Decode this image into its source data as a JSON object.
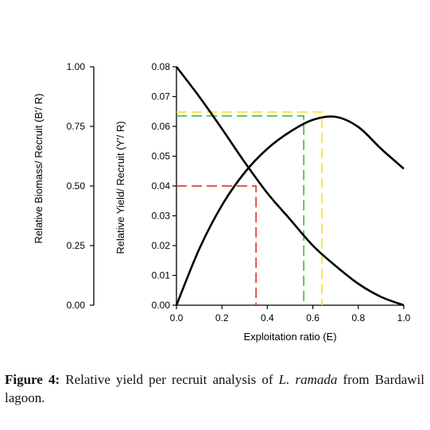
{
  "chart_data": {
    "type": "line",
    "xlabel": "Exploitation ratio (E)",
    "ylabel_left": "Relative Biomass/ Recruit (B'/ R)",
    "ylabel_right": "Relative Yield/ Recruit (Y'/ R)",
    "xlim": [
      0,
      1
    ],
    "ylim_left": [
      0,
      1
    ],
    "ylim_right": [
      0,
      0.08
    ],
    "x_ticks": [
      "0.0",
      "0.2",
      "0.4",
      "0.6",
      "0.8",
      "1.0"
    ],
    "y_left_ticks": [
      "0.00",
      "0.25",
      "0.50",
      "0.75",
      "1.00"
    ],
    "y_right_ticks": [
      "0.00",
      "0.01",
      "0.02",
      "0.03",
      "0.04",
      "0.05",
      "0.06",
      "0.07",
      "0.08"
    ],
    "highlight_left_tick": "0.50",
    "series": [
      {
        "x": [
          0.0,
          0.1,
          0.2,
          0.3,
          0.4,
          0.5,
          0.6,
          0.7,
          0.8,
          0.9,
          1.0
        ],
        "values": [
          0.0,
          0.0188,
          0.0335,
          0.0445,
          0.0525,
          0.0582,
          0.0622,
          0.0632,
          0.0598,
          0.0525,
          0.0458
        ],
        "axis": "right",
        "color": "#000000"
      },
      {
        "x": [
          0.0,
          0.1,
          0.2,
          0.3,
          0.4,
          0.5,
          0.6,
          0.7,
          0.8,
          0.9,
          1.0
        ],
        "values": [
          1.0,
          0.875,
          0.74,
          0.6,
          0.47,
          0.36,
          0.25,
          0.165,
          0.09,
          0.035,
          0.0
        ],
        "axis": "left",
        "color": "#000000"
      }
    ],
    "reference_lines": [
      {
        "x": 0.35,
        "y": 0.04,
        "axis": "right",
        "color": "#d9261c",
        "style": "dashed"
      },
      {
        "x": 0.56,
        "y": 0.0635,
        "axis": "right",
        "color": "#2db82d",
        "style": "dashed"
      },
      {
        "x": 0.64,
        "y": 0.0648,
        "axis": "right",
        "color": "#f2e21a",
        "style": "dashed"
      }
    ],
    "colors": {
      "line": "#000000",
      "highlight_tick": "#d9261c"
    }
  },
  "caption": {
    "label": "Figure 4:",
    "text_before": " Relative yield per recruit analysis of ",
    "species": "L. ramada",
    "text_after": " from Bardawil lagoon."
  }
}
